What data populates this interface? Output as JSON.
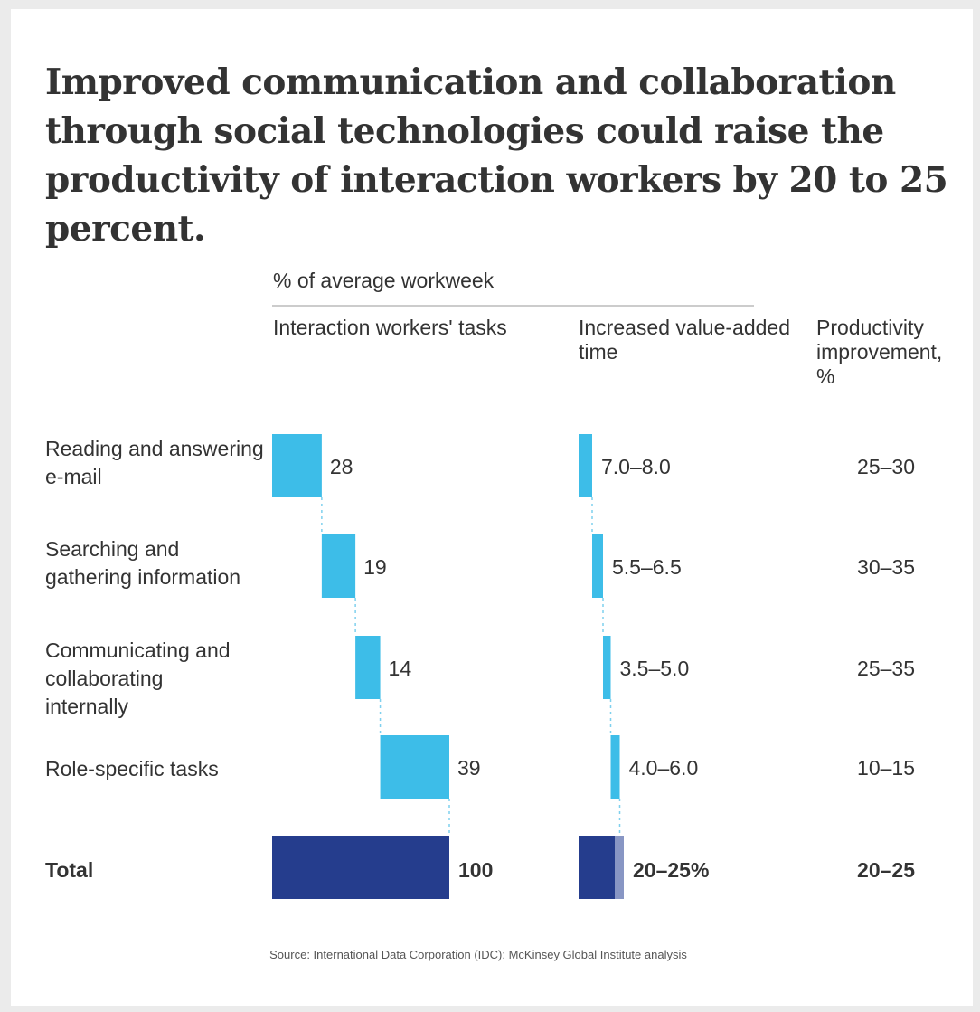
{
  "title": "Improved communication and collaboration through social technologies could raise the productivity of interaction workers by 20 to 25 percent.",
  "chart_data": {
    "type": "bar",
    "subtitle": "% of average workweek",
    "columns": [
      "Interaction workers' tasks",
      "Increased value-added time",
      "Productivity improvement, %"
    ],
    "categories": [
      "Reading and answering e-mail",
      "Searching and gathering information",
      "Communicating and collaborating internally",
      "Role-specific tasks"
    ],
    "tasks_share": [
      28,
      19,
      14,
      39
    ],
    "tasks_labels": [
      "28",
      "19",
      "14",
      "39"
    ],
    "value_added_range": [
      [
        7.0,
        8.0
      ],
      [
        5.5,
        6.5
      ],
      [
        3.5,
        5.0
      ],
      [
        4.0,
        6.0
      ]
    ],
    "value_added_labels": [
      "7.0–8.0",
      "5.5–6.5",
      "3.5–5.0",
      "4.0–6.0"
    ],
    "improvement_labels": [
      "25–30",
      "30–35",
      "25–35",
      "10–15"
    ],
    "total": {
      "label": "Total",
      "tasks": 100,
      "tasks_label": "100",
      "value_added_range": [
        20,
        25
      ],
      "value_added_label": "20–25%",
      "improvement_label": "20–25"
    },
    "colors": {
      "bar": "#3dbde8",
      "total": "#253d8d",
      "total_range": "#8896c4",
      "connector": "#7fd0ee"
    },
    "source": "Source: International Data Corporation (IDC); McKinsey Global Institute analysis"
  }
}
